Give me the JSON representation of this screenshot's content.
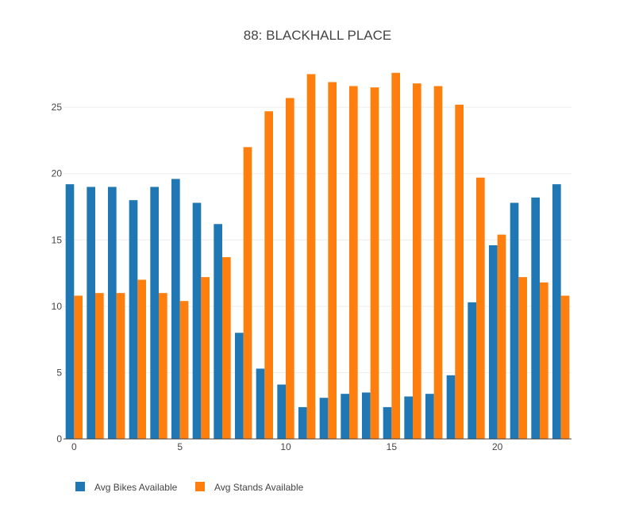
{
  "chart_data": {
    "type": "bar",
    "title": "88: BLACKHALL PLACE",
    "xlabel": "",
    "ylabel": "",
    "x": [
      0,
      1,
      2,
      3,
      4,
      5,
      6,
      7,
      8,
      9,
      10,
      11,
      12,
      13,
      14,
      15,
      16,
      17,
      18,
      19,
      20,
      21,
      22,
      23
    ],
    "xticks": [
      0,
      5,
      10,
      15,
      20
    ],
    "yticks": [
      0,
      5,
      10,
      15,
      20,
      25
    ],
    "xlim": [
      -0.5,
      23.5
    ],
    "ylim": [
      0,
      28.9
    ],
    "grid": true,
    "legend_position": "bottom-left",
    "series": [
      {
        "name": "Avg Bikes Available",
        "color": "#1f77b4",
        "values": [
          19.2,
          19.0,
          19.0,
          18.0,
          19.0,
          19.6,
          17.8,
          16.2,
          8.0,
          5.3,
          4.1,
          2.4,
          3.1,
          3.4,
          3.5,
          2.4,
          3.2,
          3.4,
          4.8,
          10.3,
          14.6,
          17.8,
          18.2,
          19.2
        ]
      },
      {
        "name": "Avg Stands Available",
        "color": "#ff7f0e",
        "values": [
          10.8,
          11.0,
          11.0,
          12.0,
          11.0,
          10.4,
          12.2,
          13.7,
          22.0,
          24.7,
          25.7,
          27.5,
          26.9,
          26.6,
          26.5,
          27.6,
          26.8,
          26.6,
          25.2,
          19.7,
          15.4,
          12.2,
          11.8,
          10.8
        ]
      }
    ]
  }
}
